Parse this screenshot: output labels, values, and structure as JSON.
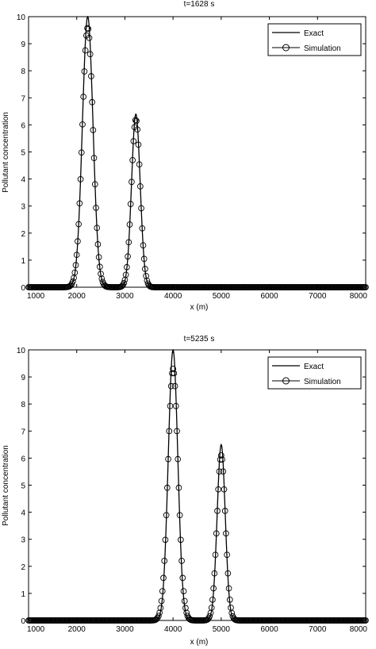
{
  "chart_data": [
    {
      "type": "line",
      "title": "t=1628 s",
      "xlabel": "x (m)",
      "ylabel": "Pollutant concentration",
      "xlim": [
        1000,
        8000
      ],
      "ylim": [
        0,
        10
      ],
      "xticks": [
        1000,
        2000,
        3000,
        4000,
        5000,
        6000,
        7000,
        8000
      ],
      "yticks": [
        0,
        1,
        2,
        3,
        4,
        5,
        6,
        7,
        8,
        9,
        10
      ],
      "grid": false,
      "legend_position": "top-right",
      "series": [
        {
          "name": "Exact",
          "style": "solid-line",
          "peaks": [
            {
              "center": 2228,
              "height": 10.0,
              "width": 155
            },
            {
              "center": 3228,
              "height": 6.4,
              "width": 126
            }
          ]
        },
        {
          "name": "Simulation",
          "style": "open-circle-markers",
          "peaks": [
            {
              "center": 2228,
              "height": 9.6,
              "width": 158
            },
            {
              "center": 3228,
              "height": 6.2,
              "width": 129
            }
          ]
        }
      ]
    },
    {
      "type": "line",
      "title": "t=5235 s",
      "xlabel": "x (m)",
      "ylabel": "Pollutant concentration",
      "xlim": [
        1000,
        8000
      ],
      "ylim": [
        0,
        10
      ],
      "xticks": [
        1000,
        2000,
        3000,
        4000,
        5000,
        6000,
        7000,
        8000
      ],
      "yticks": [
        0,
        1,
        2,
        3,
        4,
        5,
        6,
        7,
        8,
        9,
        10
      ],
      "grid": false,
      "legend_position": "top-right",
      "series": [
        {
          "name": "Exact",
          "style": "solid-line",
          "peaks": [
            {
              "center": 4000,
              "height": 10.0,
              "width": 140
            },
            {
              "center": 5000,
              "height": 6.5,
              "width": 118
            }
          ]
        },
        {
          "name": "Simulation",
          "style": "open-circle-markers",
          "peaks": [
            {
              "center": 4000,
              "height": 9.3,
              "width": 150
            },
            {
              "center": 5000,
              "height": 6.1,
              "width": 125
            }
          ]
        }
      ]
    }
  ]
}
